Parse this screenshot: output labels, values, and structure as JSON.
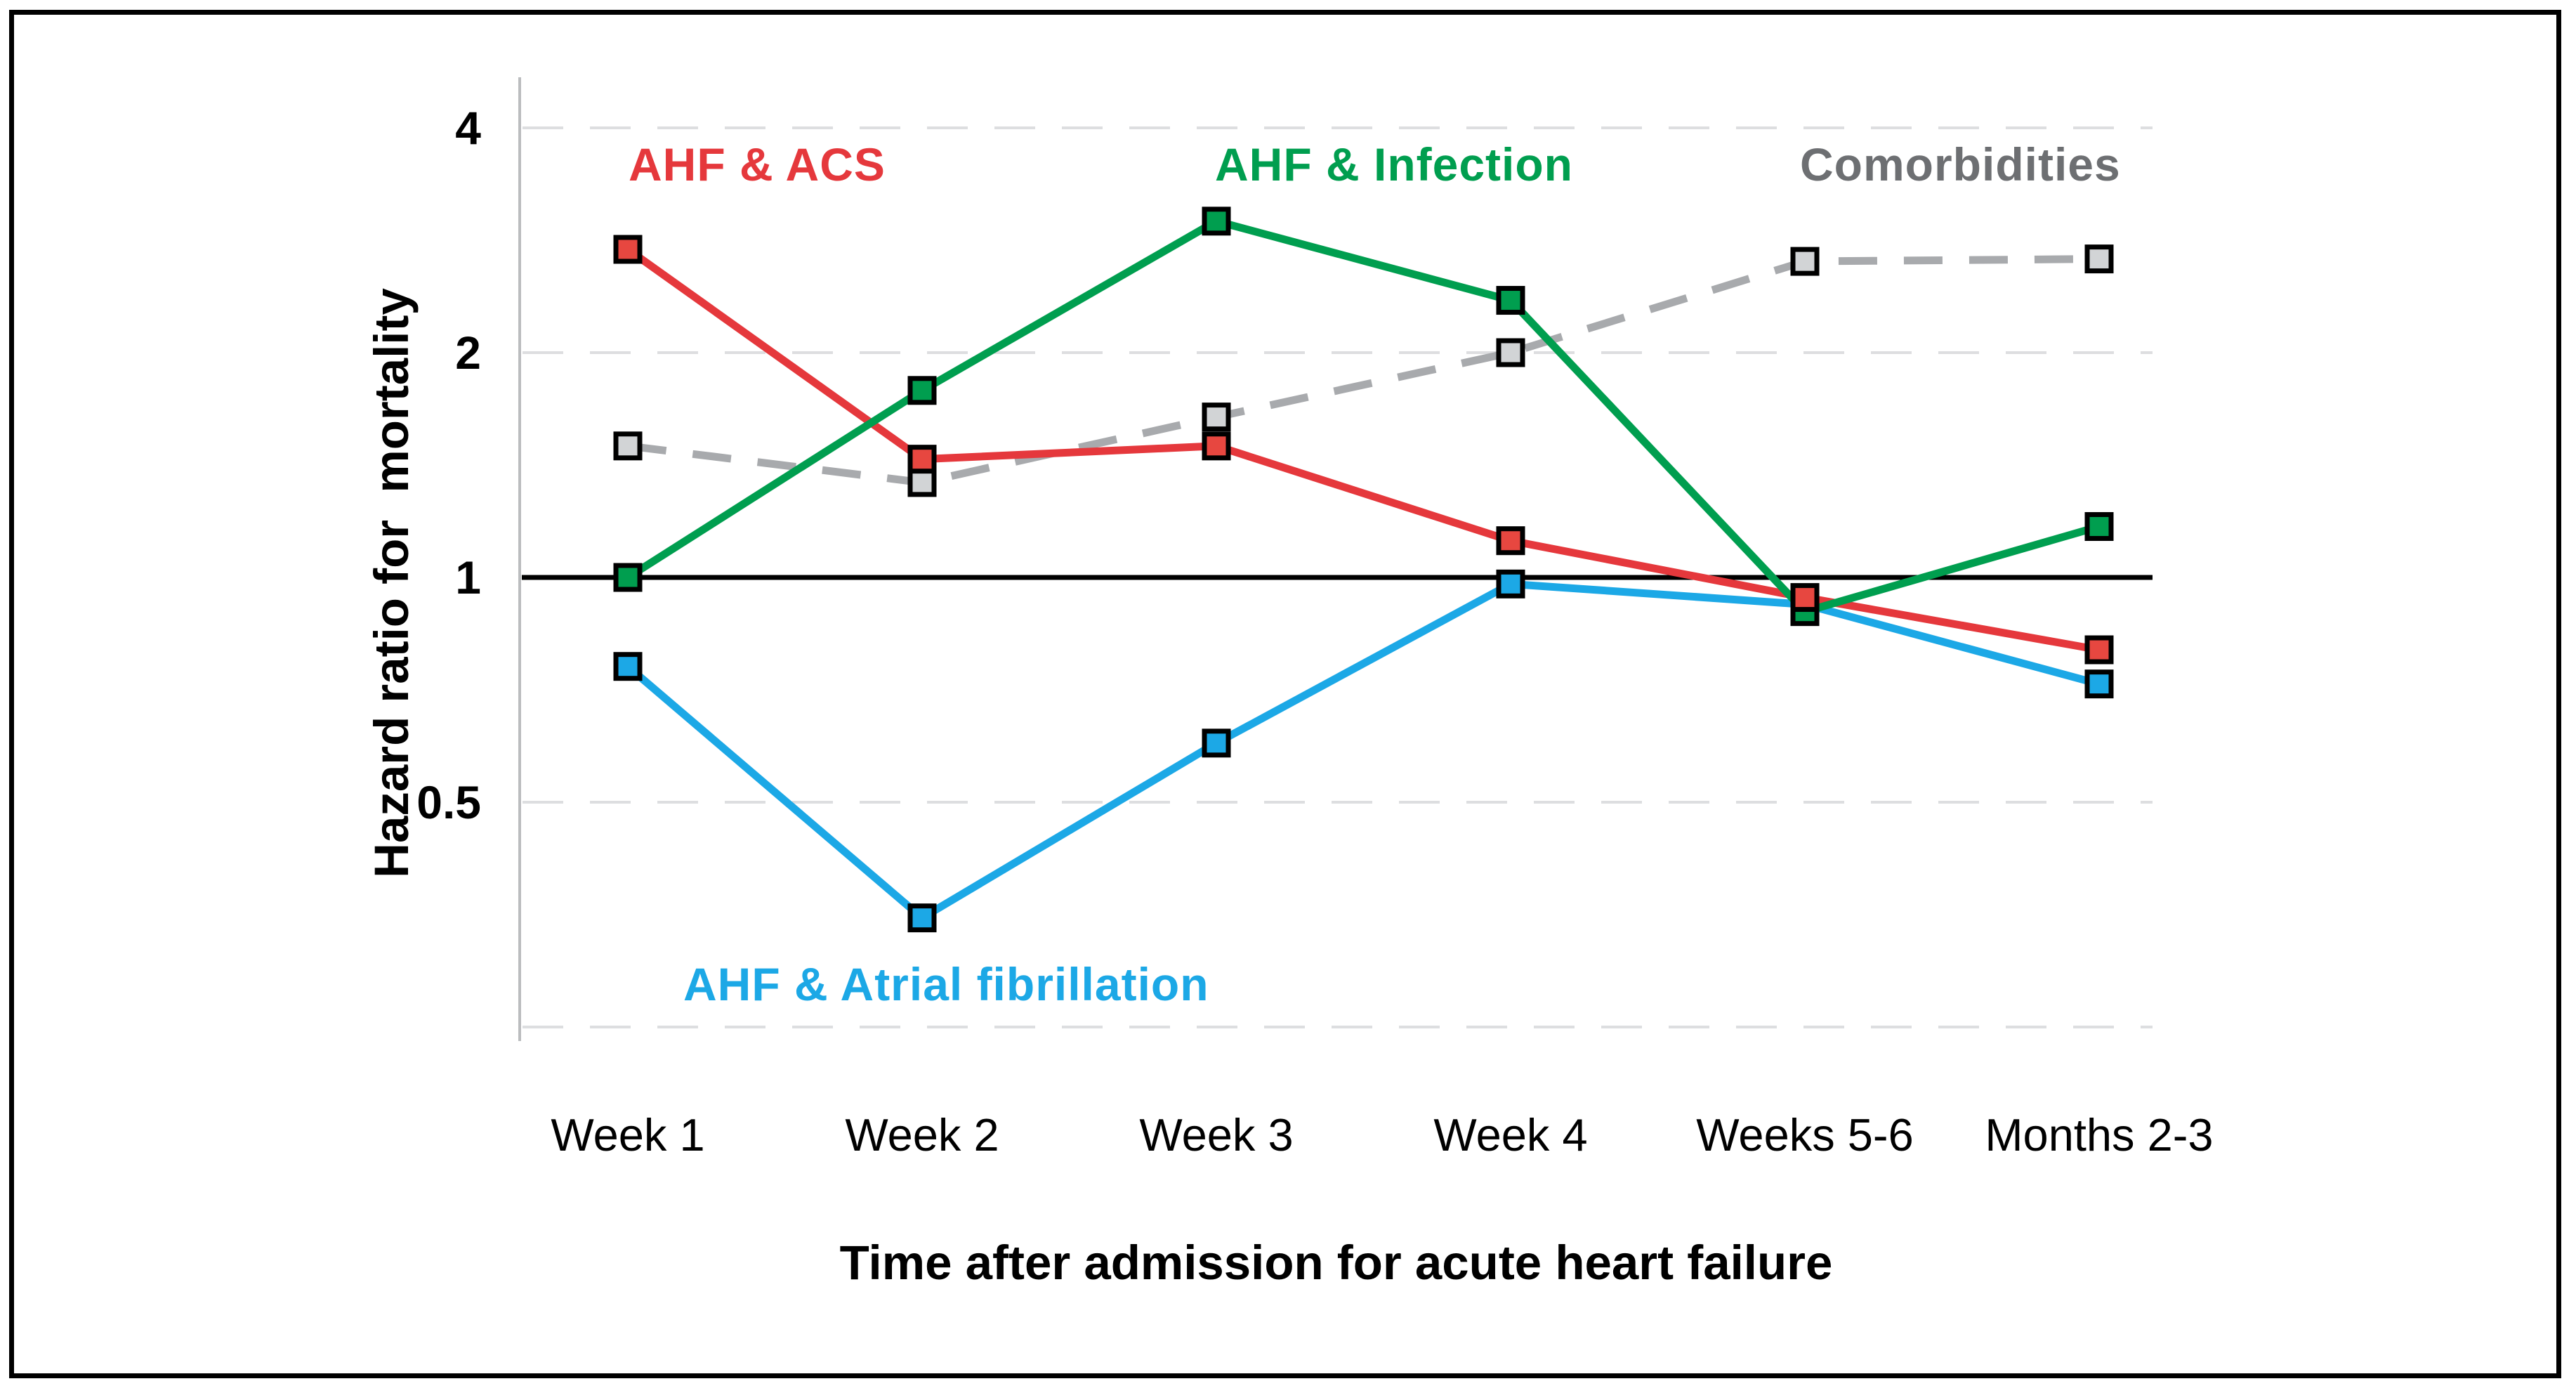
{
  "figure": {
    "background_color": "#ffffff",
    "border_color": "#000000"
  },
  "chart_data": {
    "type": "line",
    "title": "",
    "xlabel": "Time after admission for acute heart failure",
    "ylabel": "Hazard ratio for  mortality",
    "categories": [
      "Week 1",
      "Week 2",
      "Week 3",
      "Week 4",
      "Weeks 5-6",
      "Months 2-3"
    ],
    "y_axis": {
      "scale": "log2",
      "ylim": [
        0.24,
        4.67
      ],
      "ticks": [
        4,
        2,
        1,
        0.5
      ],
      "gridlines_dashed": [
        4,
        2,
        0.5,
        0.25
      ],
      "reference_line": 1,
      "gridline_color": "#DDDEE0",
      "axis_line_color": "#BBBDBF",
      "reference_line_color": "#000000",
      "tick_label_color": "#000000"
    },
    "series": [
      {
        "name": "Comorbidities",
        "color": "#A8AAAD",
        "label_color": "#6D6F72",
        "marker_fill": "#D2D4D6",
        "line_style": "dashed",
        "values": [
          1.5,
          1.34,
          1.64,
          2.0,
          2.65,
          2.67
        ]
      },
      {
        "name": "AHF & Atrial fibrillation",
        "color": "#1CA8E6",
        "label_color": "#1CA8E6",
        "marker_fill": "#1CA8E6",
        "line_style": "solid",
        "values": [
          0.76,
          0.35,
          0.6,
          0.98,
          0.92,
          0.72
        ]
      },
      {
        "name": "AHF & ACS",
        "color": "#E5383C",
        "label_color": "#E5383C",
        "marker_fill": "#E74740",
        "line_style": "solid",
        "values": [
          2.75,
          1.44,
          1.5,
          1.12,
          0.94,
          0.8
        ]
      },
      {
        "name": "AHF & Infection",
        "color": "#009E4F",
        "label_color": "#009E4F",
        "marker_fill": "#009E4F",
        "line_style": "solid",
        "values": [
          1.0,
          1.78,
          3.0,
          2.35,
          0.9,
          1.17
        ]
      }
    ],
    "legend_position": "inline-annotations",
    "grid": "horizontal-dashed"
  }
}
